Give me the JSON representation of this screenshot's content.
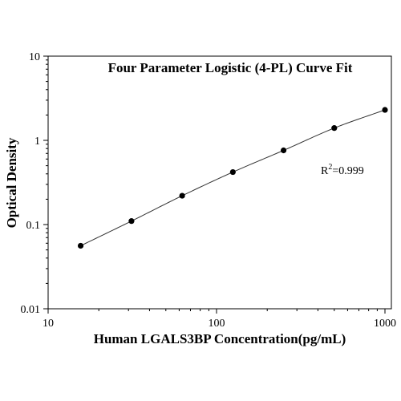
{
  "chart_data": {
    "type": "scatter",
    "title": "Four Parameter Logistic (4-PL) Curve Fit",
    "xlabel": "Human LGALS3BP Concentration(pg/mL)",
    "ylabel": "Optical Density",
    "xscale": "log",
    "yscale": "log",
    "xlim": [
      10,
      1000
    ],
    "ylim": [
      0.01,
      10
    ],
    "xticks": [
      {
        "value": 10,
        "label": "10"
      },
      {
        "value": 100,
        "label": "100"
      },
      {
        "value": 1000,
        "label": "1000"
      }
    ],
    "yticks": [
      {
        "value": 0.01,
        "label": "0.01"
      },
      {
        "value": 0.1,
        "label": "0.1"
      },
      {
        "value": 1,
        "label": "1"
      },
      {
        "value": 10,
        "label": "10"
      }
    ],
    "grid": false,
    "series": [
      {
        "x": [
          15.6,
          31.25,
          62.5,
          125,
          250,
          500,
          1000
        ],
        "y": [
          0.056,
          0.11,
          0.22,
          0.42,
          0.76,
          1.4,
          2.3
        ]
      }
    ],
    "fit_curve": "4-PL",
    "annotation": {
      "base": "R",
      "superscript": "2",
      "text": "=0.999"
    },
    "colors": {
      "axis": "#000000",
      "points": "#000000",
      "curve": "#333333"
    }
  }
}
